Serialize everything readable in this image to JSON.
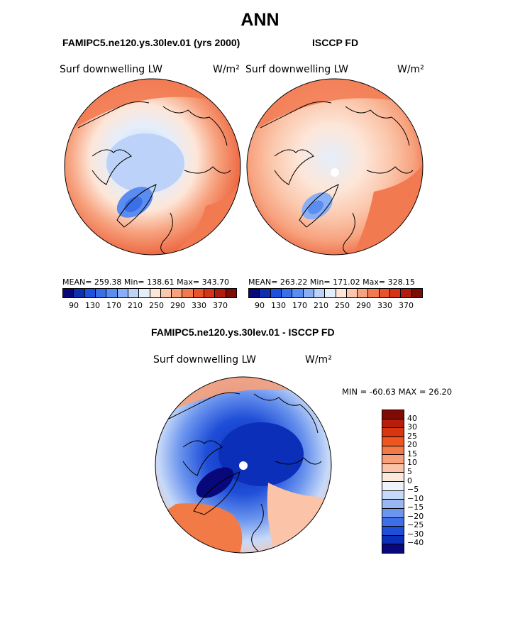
{
  "page": {
    "title": "ANN",
    "panel_left_header": "FAMIPC5.ne120.ys.30lev.01 (yrs 2000)",
    "panel_right_header": "ISCCP FD",
    "diff_header": "FAMIPC5.ne120.ys.30lev.01 - ISCCP FD"
  },
  "panels": {
    "left": {
      "variable": "Surf downwelling LW",
      "units": "W/m²",
      "stats": "MEAN= 259.38   Min= 138.61   Max= 343.70"
    },
    "right": {
      "variable": "Surf downwelling LW",
      "units": "W/m²",
      "stats": "MEAN= 263.22   Min= 171.02   Max= 328.15"
    },
    "diff": {
      "variable": "Surf downwelling LW",
      "units": "W/m²",
      "stats": "MIN = -60.63 MAX =  26.20"
    }
  },
  "colorbar_abs": {
    "colors": [
      "#08087a",
      "#0d2fb0",
      "#1f52dc",
      "#3b6fe8",
      "#5b8cf0",
      "#88aff5",
      "#bcd2f8",
      "#e4eefb",
      "#fde6d8",
      "#fbc6ab",
      "#f7a27e",
      "#f27a51",
      "#e9532c",
      "#d63318",
      "#b01c0e",
      "#7e0c04"
    ],
    "ticks": [
      "90",
      "130",
      "170",
      "210",
      "250",
      "290",
      "330",
      "370"
    ]
  },
  "colorbar_diff": {
    "colors": [
      "#7e0c04",
      "#b81d0c",
      "#d9350f",
      "#ee561e",
      "#f27a46",
      "#f7a07a",
      "#fbc3a8",
      "#fde8dc",
      "#eef3fb",
      "#c7d9f8",
      "#98b7f3",
      "#6b95ee",
      "#3f6fe6",
      "#1f4ed8",
      "#0b2fb8",
      "#08087a"
    ],
    "ticks": [
      "40",
      "30",
      "25",
      "20",
      "15",
      "10",
      "5",
      "0",
      "−5",
      "−10",
      "−15",
      "−20",
      "−25",
      "−30",
      "−40"
    ]
  }
}
